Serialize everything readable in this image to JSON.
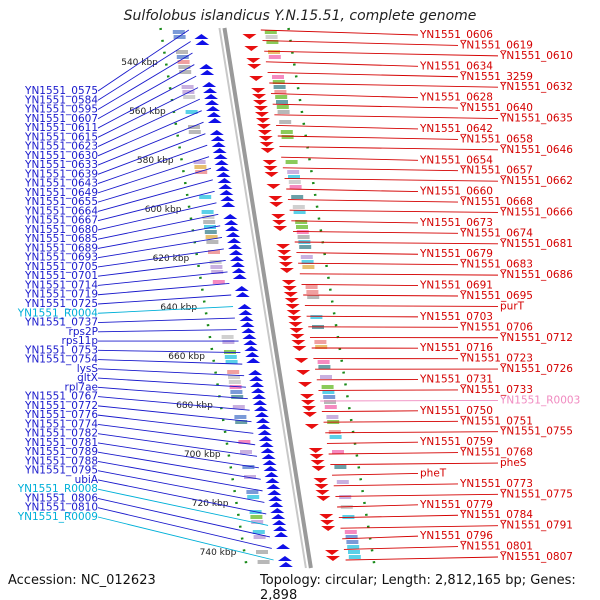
{
  "title": "Sulfolobus islandicus Y.N.15.51, complete genome",
  "footer": {
    "accession": "Accession: NC_012623",
    "topology": "Topology: circular; Length: 2,812,165 bp; Genes: 2,898"
  },
  "colors": {
    "left_label": "#1a1acc",
    "right_label": "#d40000",
    "rna_label": "#00b0d8",
    "pink_label": "#f08ac0",
    "tick_green": "#1a8a1a"
  },
  "kbp_marks": [
    "540 kbp",
    "560 kbp",
    "580 kbp",
    "600 kbp",
    "620 kbp",
    "640 kbp",
    "660 kbp",
    "680 kbp",
    "700 kbp",
    "720 kbp",
    "740 kbp"
  ],
  "left_labels": [
    "YN1551_0575",
    "YN1551_0584",
    "YN1551_0595",
    "YN1551_0607",
    "YN1551_0611",
    "YN1551_0615",
    "YN1551_0623",
    "YN1551_0630",
    "YN1551_0633",
    "YN1551_0639",
    "YN1551_0643",
    "YN1551_0649",
    "YN1551_0655",
    "YN1551_0664",
    "YN1551_0667",
    "YN1551_0680",
    "YN1551_0685",
    "YN1551_0689",
    "YN1551_0693",
    "YN1551_0705",
    "YN1551_0701",
    "YN1551_0714",
    "YN1551_0719",
    "YN1551_0725",
    "YN1551_R0004",
    "YN1551_0737",
    "rps2P",
    "rps11p",
    "YN1551_0753",
    "YN1551_0754",
    "lysS",
    "gltX",
    "rpl7ae",
    "YN1551_0767",
    "YN1551_0772",
    "YN1551_0776",
    "YN1551_0774",
    "YN1551_0782",
    "YN1551_0781",
    "YN1551_0789",
    "YN1551_0788",
    "YN1551_0795",
    "ubiA",
    "YN1551_R0008",
    "YN1551_0806",
    "YN1551_0810",
    "YN1551_R0009"
  ],
  "right_labels": [
    "YN1551_0606",
    "YN1551_0619",
    "YN1551_0610",
    "YN1551_0634",
    "YN1551_3259",
    "YN1551_0632",
    "YN1551_0628",
    "YN1551_0640",
    "YN1551_0635",
    "YN1551_0642",
    "YN1551_0658",
    "YN1551_0646",
    "YN1551_0654",
    "YN1551_0657",
    "YN1551_0662",
    "YN1551_0660",
    "YN1551_0668",
    "YN1551_0666",
    "YN1551_0673",
    "YN1551_0674",
    "YN1551_0681",
    "YN1551_0679",
    "YN1551_0683",
    "YN1551_0686",
    "YN1551_0691",
    "YN1551_0695",
    "purT",
    "YN1551_0703",
    "YN1551_0706",
    "YN1551_0712",
    "YN1551_0716",
    "YN1551_0723",
    "YN1551_0726",
    "YN1551_0731",
    "YN1551_0733",
    "YN1551_R0003",
    "YN1551_0750",
    "YN1551_0751",
    "YN1551_0755",
    "YN1551_0759",
    "YN1551_0768",
    "pheS",
    "pheT",
    "YN1551_0773",
    "YN1551_0775",
    "YN1551_0779",
    "YN1551_0784",
    "YN1551_0791",
    "YN1551_0796",
    "YN1551_0801",
    "YN1551_0807"
  ]
}
